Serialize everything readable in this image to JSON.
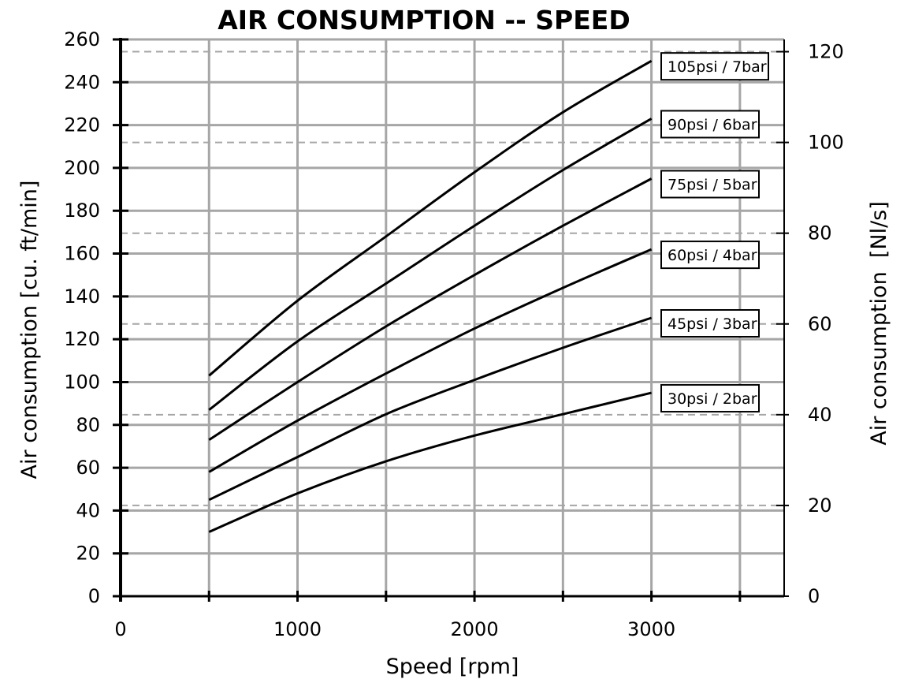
{
  "chart_data": {
    "type": "line",
    "title": "AIR CONSUMPTION -- SPEED",
    "xlabel": "Speed [rpm]",
    "ylabel": "Air consumption [cu. ft/min]",
    "y2label": "Air consumption  [Nl/s]",
    "xlim": [
      0,
      3750
    ],
    "ylim": [
      0,
      260
    ],
    "y2lim": [
      0,
      122.7
    ],
    "xticks": [
      0,
      1000,
      2000,
      3000
    ],
    "xgrid": [
      500,
      1000,
      1500,
      2000,
      2500,
      3000,
      3500
    ],
    "yticks": [
      0,
      20,
      40,
      60,
      80,
      100,
      120,
      140,
      160,
      180,
      200,
      220,
      240,
      260
    ],
    "y2ticks": [
      0,
      20,
      40,
      60,
      80,
      100,
      120
    ],
    "grid": true,
    "x": [
      500,
      1000,
      1500,
      2000,
      2500,
      3000
    ],
    "series": [
      {
        "name": "105psi / 7bar",
        "values": [
          103,
          138,
          168,
          198,
          226,
          250
        ]
      },
      {
        "name": "90psi / 6bar",
        "values": [
          87,
          119,
          146,
          173,
          199,
          223
        ]
      },
      {
        "name": "75psi / 5bar",
        "values": [
          73,
          100,
          126,
          150,
          173,
          195
        ]
      },
      {
        "name": "60psi / 4bar",
        "values": [
          58,
          82,
          104,
          125,
          144,
          162
        ]
      },
      {
        "name": "45psi / 3bar",
        "values": [
          45,
          65,
          85,
          101,
          116,
          130
        ]
      },
      {
        "name": "30psi / 2bar",
        "values": [
          30,
          48,
          63,
          75,
          85,
          95
        ]
      }
    ],
    "colors": {
      "line": "#000000",
      "grid": "#a6a6a6"
    }
  }
}
